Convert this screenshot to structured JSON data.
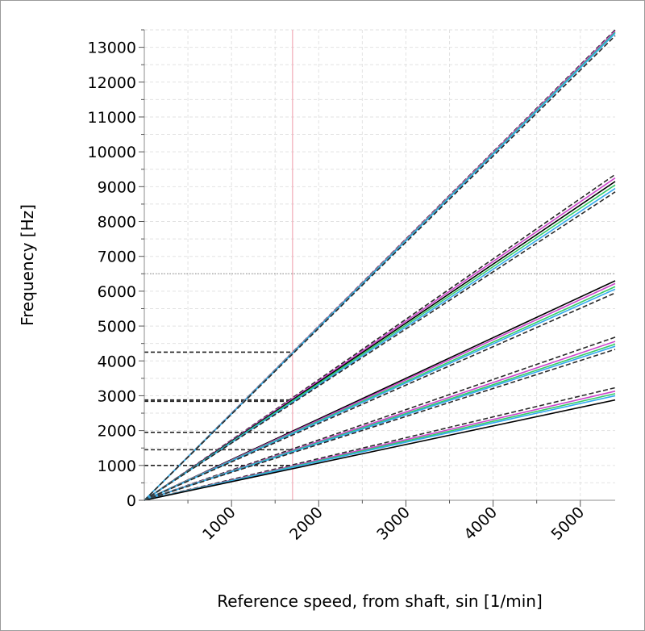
{
  "chart_data": {
    "type": "line",
    "xlabel": "Reference speed, from shaft, sin [1/min]",
    "ylabel": "Frequency [Hz]",
    "xlim": [
      0,
      5400
    ],
    "ylim": [
      0,
      13500
    ],
    "x_ticks": [
      1000,
      2000,
      3000,
      4000,
      5000
    ],
    "y_ticks": [
      0,
      1000,
      2000,
      3000,
      4000,
      5000,
      6000,
      7000,
      8000,
      9000,
      10000,
      11000,
      12000,
      13000
    ],
    "x_label_rotation": "-45 degrees",
    "grid": "dashed light gray",
    "reference_lines": {
      "vertical_speed": 1700,
      "vertical_color": "#f2aab6",
      "horizontal_frequency": 6500,
      "horizontal_style": "dotted gray"
    },
    "markers": [
      {
        "x": 1700,
        "y": 4250
      },
      {
        "x": 1700,
        "y": 2880
      },
      {
        "x": 1700,
        "y": 2840
      },
      {
        "x": 1700,
        "y": 1950
      },
      {
        "x": 1700,
        "y": 1450
      },
      {
        "x": 1700,
        "y": 1000
      }
    ],
    "x": [
      0,
      5400
    ],
    "series": [
      {
        "values": [
          0,
          13500
        ],
        "color": "#2a2a2a",
        "style": "dashed"
      },
      {
        "values": [
          0,
          13470
        ],
        "color": "#cc44cc",
        "style": "solid"
      },
      {
        "values": [
          0,
          13430
        ],
        "color": "#33cc66",
        "style": "solid"
      },
      {
        "values": [
          0,
          13400
        ],
        "color": "#33aaee",
        "style": "solid"
      },
      {
        "values": [
          0,
          13330
        ],
        "color": "#2a2a2a",
        "style": "dashed"
      },
      {
        "values": [
          0,
          9350
        ],
        "color": "#2a2a2a",
        "style": "dashed"
      },
      {
        "values": [
          0,
          9250
        ],
        "color": "#cc44cc",
        "style": "solid"
      },
      {
        "values": [
          0,
          9150
        ],
        "color": "#000000",
        "style": "solid"
      },
      {
        "values": [
          0,
          9050
        ],
        "color": "#33cc66",
        "style": "solid"
      },
      {
        "values": [
          0,
          8950
        ],
        "color": "#33aaee",
        "style": "solid"
      },
      {
        "values": [
          0,
          8850
        ],
        "color": "#2a2a2a",
        "style": "dashed"
      },
      {
        "values": [
          0,
          6300
        ],
        "color": "#000000",
        "style": "solid"
      },
      {
        "values": [
          0,
          6220
        ],
        "color": "#cc44cc",
        "style": "solid"
      },
      {
        "values": [
          0,
          6130
        ],
        "color": "#33cc66",
        "style": "solid"
      },
      {
        "values": [
          0,
          6060
        ],
        "color": "#33aaee",
        "style": "solid"
      },
      {
        "values": [
          0,
          5950
        ],
        "color": "#2a2a2a",
        "style": "dashed"
      },
      {
        "values": [
          0,
          4680
        ],
        "color": "#2a2a2a",
        "style": "dashed"
      },
      {
        "values": [
          0,
          4560
        ],
        "color": "#cc44cc",
        "style": "solid"
      },
      {
        "values": [
          0,
          4480
        ],
        "color": "#33cc66",
        "style": "solid"
      },
      {
        "values": [
          0,
          4420
        ],
        "color": "#33aaee",
        "style": "solid"
      },
      {
        "values": [
          0,
          4330
        ],
        "color": "#2a2a2a",
        "style": "dashed"
      },
      {
        "values": [
          0,
          3230
        ],
        "color": "#2a2a2a",
        "style": "dashed"
      },
      {
        "values": [
          0,
          3130
        ],
        "color": "#cc44cc",
        "style": "solid"
      },
      {
        "values": [
          0,
          3060
        ],
        "color": "#33cc66",
        "style": "solid"
      },
      {
        "values": [
          0,
          3000
        ],
        "color": "#33aaee",
        "style": "solid"
      },
      {
        "values": [
          0,
          2880
        ],
        "color": "#000000",
        "style": "solid"
      }
    ]
  }
}
